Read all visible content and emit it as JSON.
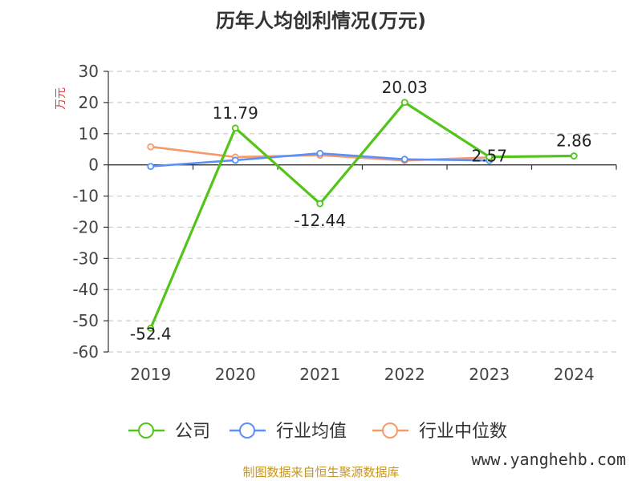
{
  "chart_data": {
    "type": "line",
    "title": "历年人均创利情况(万元)",
    "xlabel": "",
    "ylabel": "万元",
    "categories": [
      "2019",
      "2020",
      "2021",
      "2022",
      "2023",
      "2024"
    ],
    "ylim": [
      -60,
      30
    ],
    "yticks": [
      30,
      20,
      10,
      0,
      -10,
      -20,
      -30,
      -40,
      -50,
      -60
    ],
    "grid": true,
    "legend_position": "bottom",
    "series": [
      {
        "name": "公司",
        "color": "#52c41a",
        "values": [
          -52.4,
          11.79,
          -12.44,
          20.03,
          2.57,
          2.86
        ],
        "labels": [
          "-52.4",
          "11.79",
          "-12.44",
          "20.03",
          "2.57",
          "2.86"
        ]
      },
      {
        "name": "行业均值",
        "color": "#5b8ff9",
        "values": [
          -0.5,
          1.5,
          3.7,
          1.8,
          1.4,
          null
        ]
      },
      {
        "name": "行业中位数",
        "color": "#f59a6a",
        "values": [
          5.8,
          2.5,
          3.1,
          1.4,
          2.4,
          null
        ]
      }
    ]
  },
  "footer": {
    "source": "制图数据来自恒生聚源数据库",
    "watermark": "www.yanghehb.com"
  }
}
